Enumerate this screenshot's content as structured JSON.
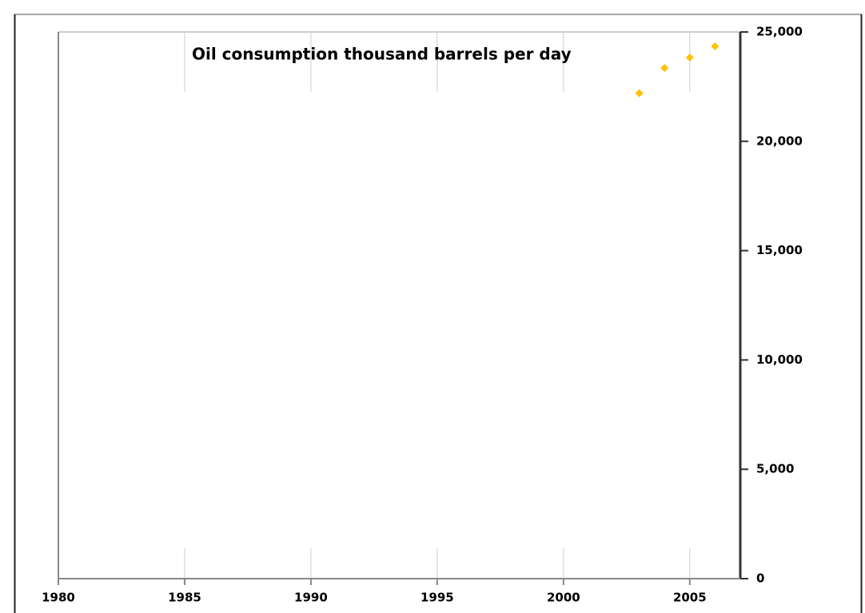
{
  "chart_data": {
    "type": "scatter",
    "title": "Oil consumption thousand barrels per day",
    "x": [
      2003,
      2004,
      2005,
      2006
    ],
    "series": [
      {
        "name": "Oil consumption",
        "color": "#ffc000",
        "values": [
          22200,
          23350,
          23830,
          24340
        ]
      }
    ],
    "xlim": [
      1980,
      2007
    ],
    "xticks": [
      1980,
      1985,
      1990,
      1995,
      2000,
      2005
    ],
    "ylim": [
      0,
      25000
    ],
    "yticks": [
      0,
      {
        "value": 5000,
        "label": "5,000"
      },
      {
        "value": 10000,
        "label": "10,000"
      },
      {
        "value": 15000,
        "label": "15,000"
      },
      {
        "value": 20000,
        "label": "20,000"
      },
      {
        "value": 25000,
        "label": "25,000"
      }
    ],
    "grid": true
  }
}
